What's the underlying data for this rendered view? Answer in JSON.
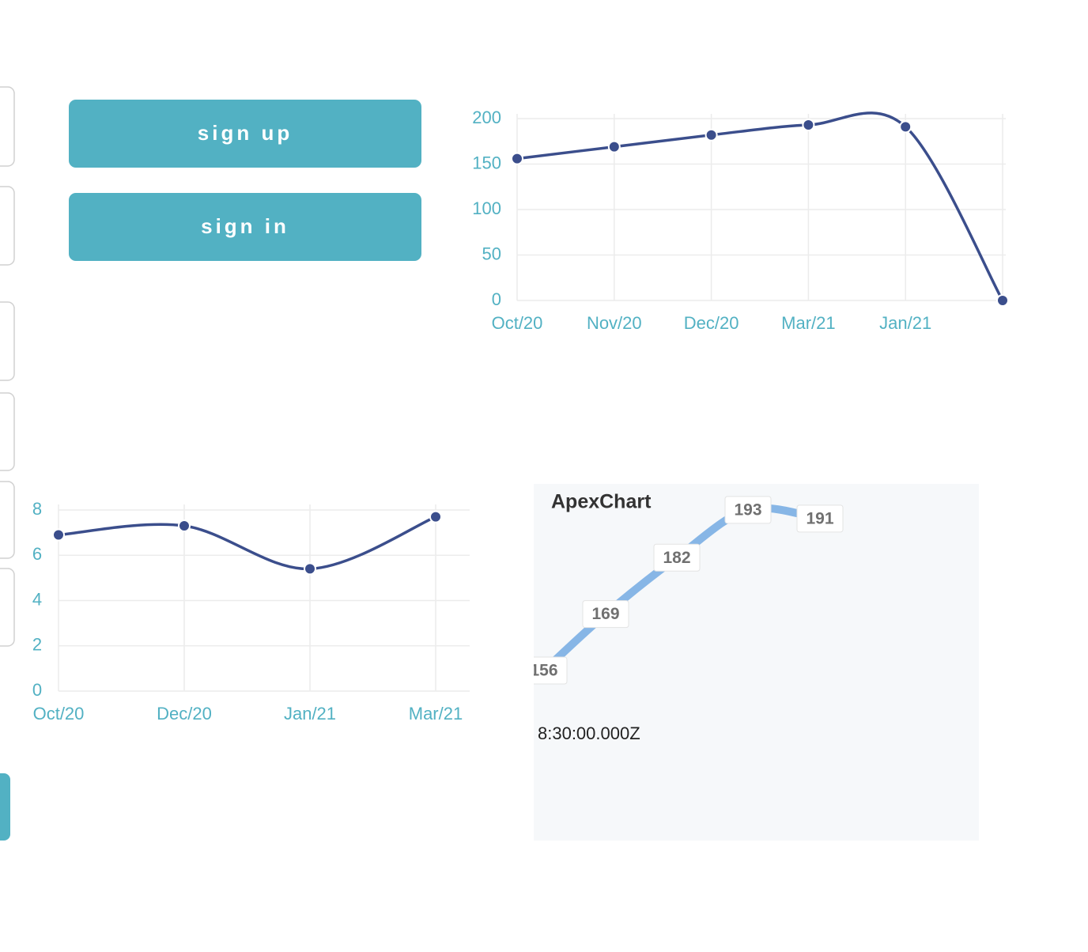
{
  "buttons": [
    "sign up",
    "sign in"
  ],
  "chart_data": [
    {
      "type": "line",
      "categories": [
        "Oct/20",
        "Nov/20",
        "Dec/20",
        "Mar/21",
        "Jan/21",
        null
      ],
      "values": [
        156,
        169,
        182,
        193,
        191,
        0
      ],
      "color": "#3b4e8c",
      "ylim": [
        0,
        200
      ],
      "yticks": [
        0,
        50,
        100,
        150,
        200
      ],
      "grid": true
    },
    {
      "type": "line",
      "categories": [
        "Oct/20",
        "Dec/20",
        "Jan/21",
        "Mar/21"
      ],
      "values": [
        6.9,
        7.3,
        5.4,
        7.7
      ],
      "color": "#3b4e8c",
      "ylim": [
        0,
        8
      ],
      "yticks": [
        0,
        2,
        4,
        6,
        8
      ],
      "grid": true
    },
    {
      "type": "apex",
      "title": "ApexChart",
      "values": [
        156,
        169,
        182,
        193,
        191
      ],
      "color": "#87b6e6",
      "annotation": "8:30:00.000Z"
    }
  ]
}
